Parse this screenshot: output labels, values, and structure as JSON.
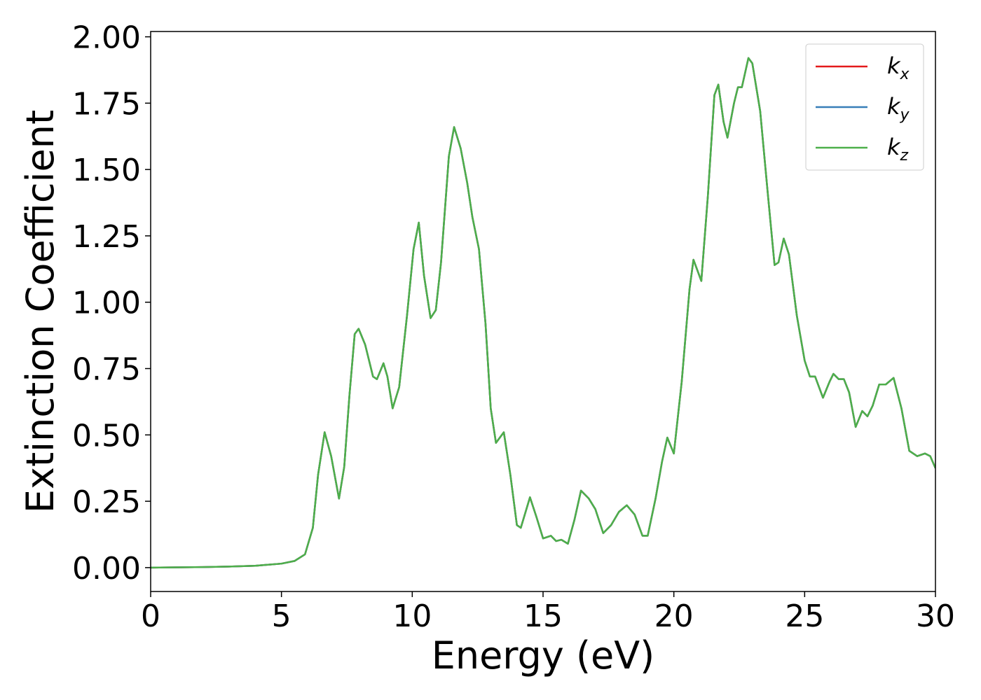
{
  "chart_data": {
    "type": "line",
    "xlabel": "Energy (eV)",
    "ylabel": "Extinction Coefficient",
    "x": [
      0,
      1,
      2,
      3,
      4,
      5,
      5.5,
      5.9,
      6.2,
      6.4,
      6.65,
      6.9,
      7.2,
      7.4,
      7.6,
      7.8,
      7.95,
      8.2,
      8.5,
      8.65,
      8.9,
      9.05,
      9.25,
      9.5,
      9.8,
      10.05,
      10.25,
      10.45,
      10.7,
      10.9,
      11.1,
      11.4,
      11.6,
      11.85,
      12.1,
      12.3,
      12.55,
      12.8,
      13.0,
      13.2,
      13.5,
      13.75,
      14.0,
      14.15,
      14.5,
      14.75,
      15.0,
      15.3,
      15.5,
      15.7,
      15.95,
      16.2,
      16.45,
      16.75,
      17.0,
      17.3,
      17.6,
      17.9,
      18.2,
      18.5,
      18.8,
      19.0,
      19.3,
      19.55,
      19.75,
      20.0,
      20.3,
      20.6,
      20.75,
      20.9,
      21.05,
      21.3,
      21.55,
      21.7,
      21.9,
      22.05,
      22.3,
      22.45,
      22.6,
      22.85,
      23.0,
      23.3,
      23.6,
      23.85,
      24.0,
      24.2,
      24.4,
      24.7,
      25.0,
      25.2,
      25.4,
      25.7,
      25.95,
      26.1,
      26.3,
      26.5,
      26.7,
      26.95,
      27.2,
      27.4,
      27.6,
      27.85,
      28.1,
      28.4,
      28.7,
      29.0,
      29.3,
      29.6,
      29.8,
      30.0
    ],
    "series": [
      {
        "name": "kx",
        "color": "#e41a1c",
        "values": [
          0,
          0.001,
          0.002,
          0.004,
          0.007,
          0.015,
          0.025,
          0.05,
          0.15,
          0.35,
          0.51,
          0.42,
          0.26,
          0.38,
          0.65,
          0.88,
          0.9,
          0.84,
          0.72,
          0.71,
          0.77,
          0.72,
          0.6,
          0.68,
          0.95,
          1.2,
          1.3,
          1.1,
          0.94,
          0.97,
          1.15,
          1.55,
          1.66,
          1.58,
          1.45,
          1.32,
          1.2,
          0.92,
          0.6,
          0.47,
          0.51,
          0.35,
          0.16,
          0.15,
          0.265,
          0.19,
          0.11,
          0.12,
          0.1,
          0.105,
          0.09,
          0.18,
          0.29,
          0.26,
          0.22,
          0.13,
          0.16,
          0.21,
          0.235,
          0.2,
          0.12,
          0.12,
          0.26,
          0.4,
          0.49,
          0.43,
          0.7,
          1.05,
          1.16,
          1.12,
          1.08,
          1.4,
          1.78,
          1.82,
          1.68,
          1.62,
          1.75,
          1.81,
          1.81,
          1.92,
          1.9,
          1.72,
          1.4,
          1.14,
          1.15,
          1.24,
          1.18,
          0.95,
          0.78,
          0.72,
          0.72,
          0.64,
          0.7,
          0.73,
          0.71,
          0.71,
          0.66,
          0.53,
          0.59,
          0.57,
          0.61,
          0.69,
          0.69,
          0.715,
          0.6,
          0.44,
          0.42,
          0.43,
          0.42,
          0.375
        ]
      },
      {
        "name": "ky",
        "color": "#377eb8",
        "values": [
          0,
          0.001,
          0.002,
          0.004,
          0.007,
          0.015,
          0.025,
          0.05,
          0.15,
          0.35,
          0.51,
          0.42,
          0.26,
          0.38,
          0.65,
          0.88,
          0.9,
          0.84,
          0.72,
          0.71,
          0.77,
          0.72,
          0.6,
          0.68,
          0.95,
          1.2,
          1.3,
          1.1,
          0.94,
          0.97,
          1.15,
          1.55,
          1.66,
          1.58,
          1.45,
          1.32,
          1.2,
          0.92,
          0.6,
          0.47,
          0.51,
          0.35,
          0.16,
          0.15,
          0.265,
          0.19,
          0.11,
          0.12,
          0.1,
          0.105,
          0.09,
          0.18,
          0.29,
          0.26,
          0.22,
          0.13,
          0.16,
          0.21,
          0.235,
          0.2,
          0.12,
          0.12,
          0.26,
          0.4,
          0.49,
          0.43,
          0.7,
          1.05,
          1.16,
          1.12,
          1.08,
          1.4,
          1.78,
          1.82,
          1.68,
          1.62,
          1.75,
          1.81,
          1.81,
          1.92,
          1.9,
          1.72,
          1.4,
          1.14,
          1.15,
          1.24,
          1.18,
          0.95,
          0.78,
          0.72,
          0.72,
          0.64,
          0.7,
          0.73,
          0.71,
          0.71,
          0.66,
          0.53,
          0.59,
          0.57,
          0.61,
          0.69,
          0.69,
          0.715,
          0.6,
          0.44,
          0.42,
          0.43,
          0.42,
          0.375
        ]
      },
      {
        "name": "kz",
        "color": "#4daf4a",
        "values": [
          0,
          0.001,
          0.002,
          0.004,
          0.007,
          0.015,
          0.025,
          0.05,
          0.15,
          0.35,
          0.51,
          0.42,
          0.26,
          0.38,
          0.65,
          0.88,
          0.9,
          0.84,
          0.72,
          0.71,
          0.77,
          0.72,
          0.6,
          0.68,
          0.95,
          1.2,
          1.3,
          1.1,
          0.94,
          0.97,
          1.15,
          1.55,
          1.66,
          1.58,
          1.45,
          1.32,
          1.2,
          0.92,
          0.6,
          0.47,
          0.51,
          0.35,
          0.16,
          0.15,
          0.265,
          0.19,
          0.11,
          0.12,
          0.1,
          0.105,
          0.09,
          0.18,
          0.29,
          0.26,
          0.22,
          0.13,
          0.16,
          0.21,
          0.235,
          0.2,
          0.12,
          0.12,
          0.26,
          0.4,
          0.49,
          0.43,
          0.7,
          1.05,
          1.16,
          1.12,
          1.08,
          1.4,
          1.78,
          1.82,
          1.68,
          1.62,
          1.75,
          1.81,
          1.81,
          1.92,
          1.9,
          1.72,
          1.4,
          1.14,
          1.15,
          1.24,
          1.18,
          0.95,
          0.78,
          0.72,
          0.72,
          0.64,
          0.7,
          0.73,
          0.71,
          0.71,
          0.66,
          0.53,
          0.59,
          0.57,
          0.61,
          0.69,
          0.69,
          0.715,
          0.6,
          0.44,
          0.42,
          0.43,
          0.42,
          0.375
        ]
      }
    ],
    "xlim": [
      0,
      30
    ],
    "xticks": [
      0,
      5,
      10,
      15,
      20,
      25,
      30
    ],
    "ylim": [
      -0.09,
      2.02
    ],
    "yticks": [
      {
        "value": 0,
        "label": "0.00"
      },
      {
        "value": 0.25,
        "label": "0.25"
      },
      {
        "value": 0.5,
        "label": "0.50"
      },
      {
        "value": 0.75,
        "label": "0.75"
      },
      {
        "value": 1,
        "label": "1.00"
      },
      {
        "value": 1.25,
        "label": "1.25"
      },
      {
        "value": 1.5,
        "label": "1.50"
      },
      {
        "value": 1.75,
        "label": "1.75"
      },
      {
        "value": 2,
        "label": "2.00"
      }
    ],
    "grid": false,
    "legend": "upper right"
  }
}
